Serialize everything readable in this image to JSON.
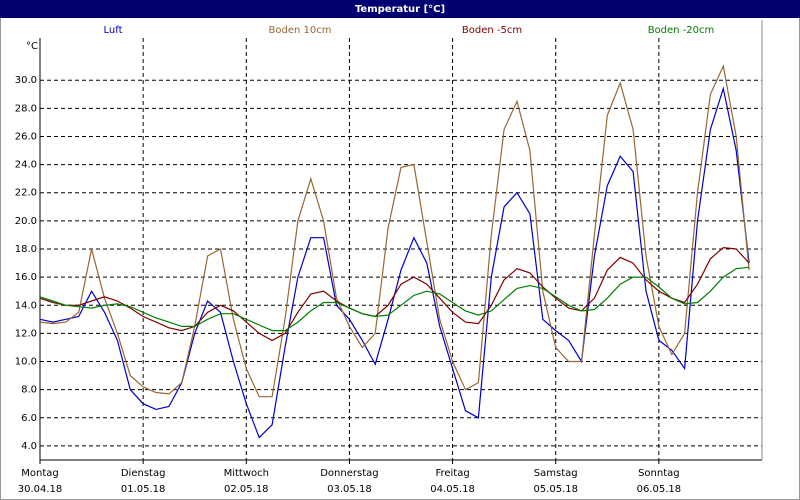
{
  "chart_data": {
    "type": "line",
    "title": "Temperatur [°C]",
    "y_unit_label": "°C",
    "x": [
      0,
      3,
      6,
      9,
      12,
      15,
      18,
      21,
      24,
      27,
      30,
      33,
      36,
      39,
      42,
      45,
      48,
      51,
      54,
      57,
      60,
      63,
      66,
      69,
      72,
      75,
      78,
      81,
      84,
      87,
      90,
      93,
      96,
      99,
      102,
      105,
      108,
      111,
      114,
      117,
      120,
      123,
      126,
      129,
      132,
      135,
      138,
      141,
      144,
      147,
      150,
      153,
      156,
      159,
      162,
      165
    ],
    "xlim": [
      0,
      168
    ],
    "xticks": [
      {
        "value": 0,
        "label": "Montag"
      },
      {
        "value": 24,
        "label": "Dienstag"
      },
      {
        "value": 48,
        "label": "Mittwoch"
      },
      {
        "value": 72,
        "label": "Donnerstag"
      },
      {
        "value": 96,
        "label": "Freitag"
      },
      {
        "value": 120,
        "label": "Samstag"
      },
      {
        "value": 144,
        "label": "Sonntag"
      }
    ],
    "xtick_dates": [
      "30.04.18",
      "01.05.18",
      "02.05.18",
      "03.05.18",
      "04.05.18",
      "05.05.18",
      "06.05.18"
    ],
    "ylim": [
      3,
      33
    ],
    "yticks": [
      {
        "value": 4,
        "label": "4.0"
      },
      {
        "value": 6,
        "label": "6.0"
      },
      {
        "value": 8,
        "label": "8.0"
      },
      {
        "value": 10,
        "label": "10.0"
      },
      {
        "value": 12,
        "label": "12.0"
      },
      {
        "value": 14,
        "label": "14.0"
      },
      {
        "value": 16,
        "label": "16.0"
      },
      {
        "value": 18,
        "label": "18.0"
      },
      {
        "value": 20,
        "label": "20.0"
      },
      {
        "value": 22,
        "label": "22.0"
      },
      {
        "value": 24,
        "label": "24.0"
      },
      {
        "value": 26,
        "label": "26.0"
      },
      {
        "value": 28,
        "label": "28.0"
      },
      {
        "value": 30,
        "label": "30.0"
      }
    ],
    "grid": true,
    "series": [
      {
        "name": "Luft",
        "color": "#0000cc",
        "values": [
          13.0,
          12.8,
          13.0,
          13.2,
          15.0,
          13.5,
          11.5,
          8.0,
          7.0,
          6.6,
          6.8,
          8.5,
          12.0,
          14.3,
          13.5,
          10.0,
          7.0,
          4.6,
          5.5,
          11.0,
          16.0,
          18.8,
          18.8,
          14.0,
          13.0,
          11.5,
          9.8,
          13.0,
          16.5,
          18.8,
          17.0,
          12.5,
          9.5,
          6.5,
          6.0,
          16.0,
          21.0,
          22.0,
          20.5,
          13.0,
          12.2,
          11.5,
          10.0,
          17.5,
          22.5,
          24.6,
          23.5,
          15.0,
          11.5,
          10.8,
          9.5,
          20.0,
          26.5,
          29.4,
          25.0,
          17.0
        ]
      },
      {
        "name": "Boden 10cm",
        "color": "#996633",
        "values": [
          12.8,
          12.7,
          12.8,
          13.5,
          18.0,
          14.5,
          12.0,
          9.0,
          8.2,
          7.8,
          7.7,
          8.5,
          12.5,
          17.5,
          18.0,
          13.0,
          9.5,
          7.5,
          7.5,
          13.0,
          20.0,
          23.0,
          20.0,
          14.5,
          12.5,
          11.0,
          12.0,
          19.5,
          23.8,
          24.0,
          18.5,
          13.0,
          10.0,
          8.0,
          8.5,
          19.0,
          26.5,
          28.5,
          25.0,
          15.0,
          11.0,
          10.0,
          10.0,
          19.0,
          27.5,
          29.8,
          26.5,
          17.5,
          12.5,
          10.5,
          12.0,
          22.0,
          29.0,
          31.0,
          26.0,
          16.5
        ]
      },
      {
        "name": "Boden -5cm",
        "color": "#800000",
        "values": [
          14.5,
          14.2,
          14.0,
          14.0,
          14.3,
          14.6,
          14.3,
          13.8,
          13.2,
          12.8,
          12.4,
          12.2,
          12.5,
          13.5,
          14.0,
          13.6,
          12.8,
          12.0,
          11.5,
          12.0,
          13.5,
          14.8,
          15.0,
          14.3,
          13.8,
          13.4,
          13.2,
          14.0,
          15.5,
          16.0,
          15.5,
          14.5,
          13.5,
          12.8,
          12.7,
          14.0,
          15.8,
          16.6,
          16.3,
          15.3,
          14.5,
          13.8,
          13.6,
          14.5,
          16.5,
          17.4,
          17.0,
          15.8,
          15.0,
          14.5,
          14.2,
          15.5,
          17.3,
          18.1,
          18.0,
          17.0
        ]
      },
      {
        "name": "Boden -20cm",
        "color": "#008000",
        "values": [
          14.6,
          14.3,
          14.0,
          13.9,
          13.8,
          14.0,
          14.1,
          13.9,
          13.5,
          13.1,
          12.8,
          12.5,
          12.5,
          13.0,
          13.4,
          13.4,
          13.0,
          12.6,
          12.2,
          12.2,
          12.8,
          13.6,
          14.2,
          14.2,
          13.8,
          13.4,
          13.2,
          13.3,
          14.0,
          14.7,
          15.0,
          14.8,
          14.2,
          13.6,
          13.3,
          13.6,
          14.4,
          15.2,
          15.4,
          15.2,
          14.6,
          14.0,
          13.6,
          13.7,
          14.5,
          15.5,
          16.0,
          16.0,
          15.3,
          14.5,
          14.1,
          14.2,
          15.0,
          16.0,
          16.6,
          16.7
        ]
      }
    ]
  }
}
